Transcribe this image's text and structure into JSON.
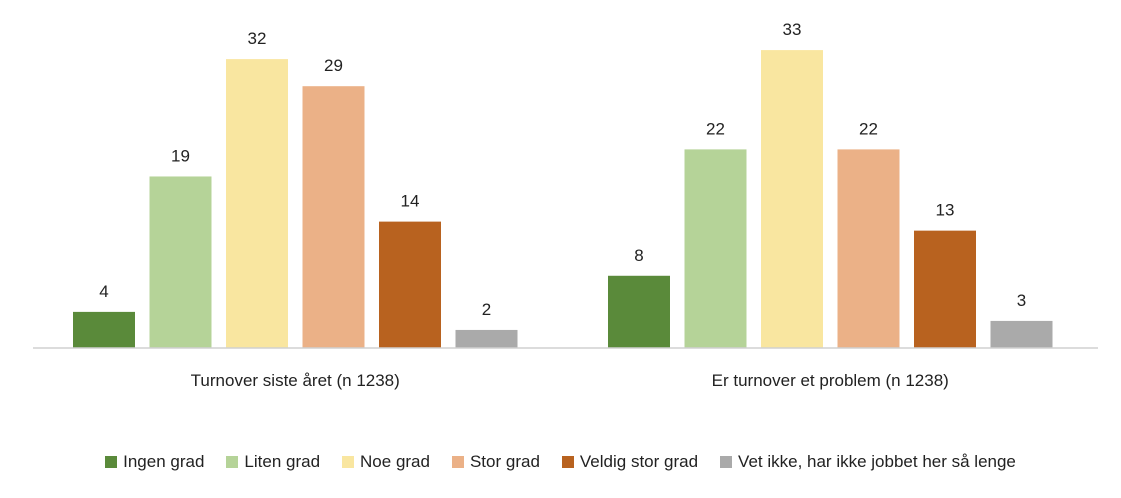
{
  "chart_data": {
    "type": "bar",
    "categories": [
      "Turnover siste året (n 1238)",
      "Er turnover et problem (n 1238)"
    ],
    "series": [
      {
        "name": "Ingen grad",
        "color": "#5a8a3a",
        "values": [
          4,
          8
        ]
      },
      {
        "name": "Liten grad",
        "color": "#b5d398",
        "values": [
          19,
          22
        ]
      },
      {
        "name": "Noe grad",
        "color": "#f9e6a0",
        "values": [
          32,
          33
        ]
      },
      {
        "name": "Stor grad",
        "color": "#ebb187",
        "values": [
          29,
          22
        ]
      },
      {
        "name": "Veldig stor grad",
        "color": "#b8621f",
        "values": [
          14,
          13
        ]
      },
      {
        "name": "Vet ikke, har ikke jobbet her så lenge",
        "color": "#aaaaaa",
        "values": [
          2,
          3
        ]
      }
    ],
    "title": "",
    "xlabel": "",
    "ylabel": "",
    "ylim": [
      0,
      36
    ],
    "grid": false,
    "legend_position": "bottom",
    "data_labels": true
  }
}
